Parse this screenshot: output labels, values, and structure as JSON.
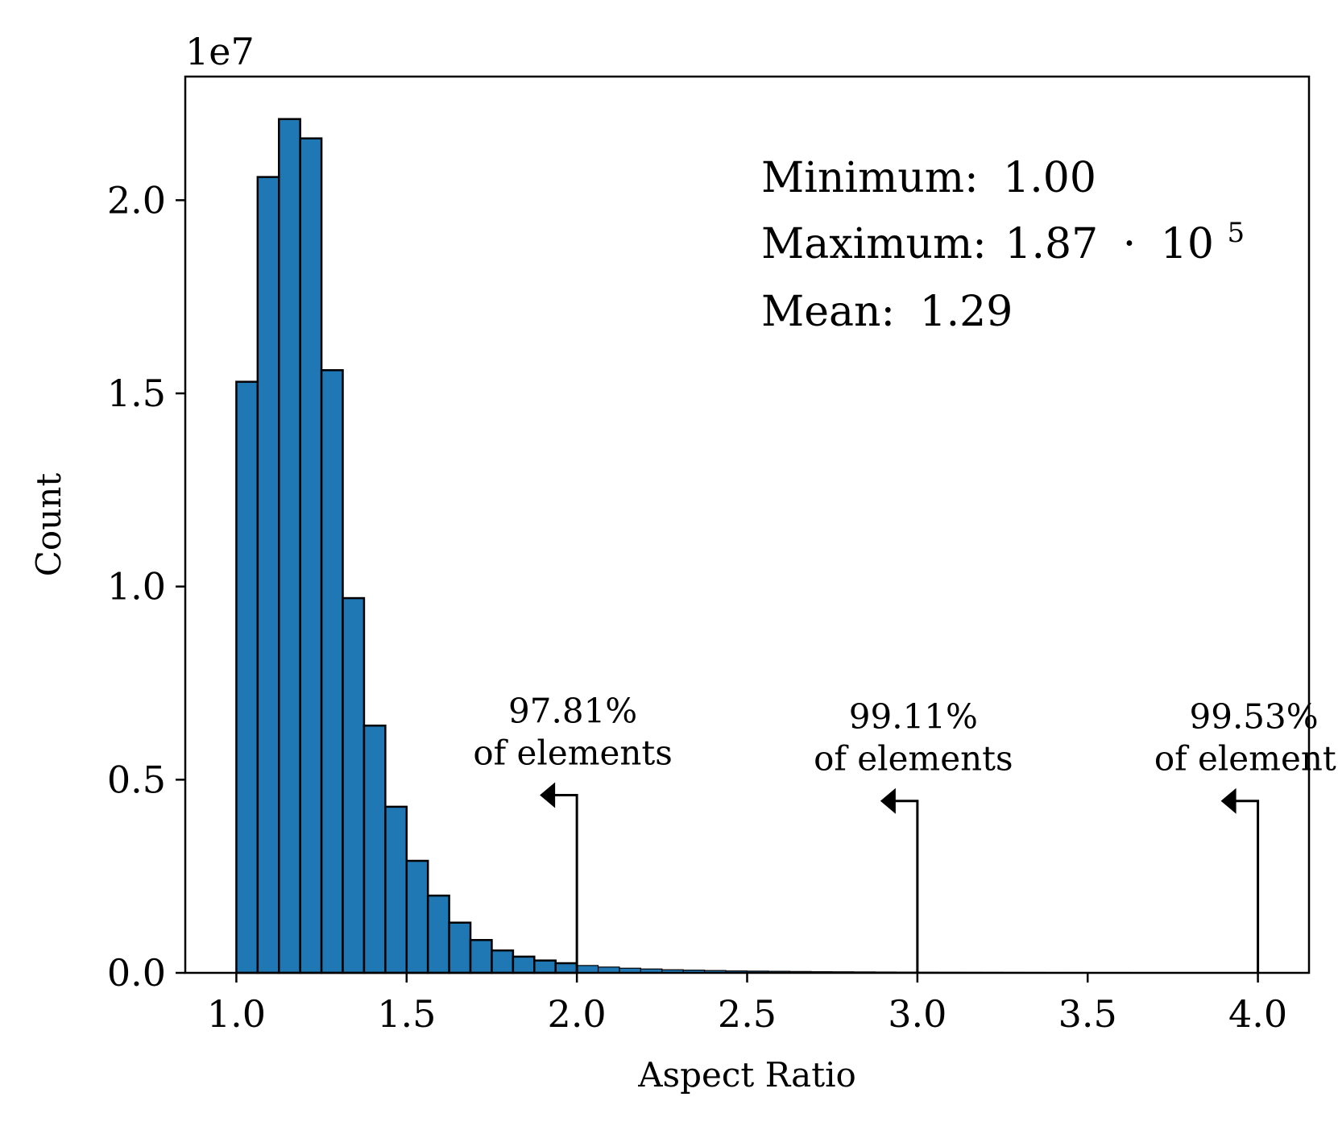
{
  "chart_data": {
    "type": "bar",
    "title": "",
    "xlabel": "Aspect Ratio",
    "ylabel": "Count",
    "y_multiplier_label": "1e7",
    "xlim": [
      0.85,
      4.15
    ],
    "ylim": [
      0,
      2.32
    ],
    "x_ticks": [
      "1.0",
      "1.5",
      "2.0",
      "2.5",
      "3.0",
      "3.5",
      "4.0"
    ],
    "x_tick_values": [
      1.0,
      1.5,
      2.0,
      2.5,
      3.0,
      3.5,
      4.0
    ],
    "y_ticks": [
      "0.0",
      "0.5",
      "1.0",
      "1.5",
      "2.0"
    ],
    "y_tick_values": [
      0.0,
      0.5,
      1.0,
      1.5,
      2.0
    ],
    "bin_start": 1.0,
    "bin_width": 0.0625,
    "values": [
      1.53,
      2.06,
      2.21,
      2.16,
      1.56,
      0.97,
      0.64,
      0.43,
      0.29,
      0.2,
      0.13,
      0.085,
      0.058,
      0.042,
      0.032,
      0.025,
      0.019,
      0.015,
      0.012,
      0.01,
      0.008,
      0.007,
      0.006,
      0.005,
      0.0045,
      0.004,
      0.0035,
      0.003,
      0.0027,
      0.0024,
      0.0021,
      0.0019,
      0.0017,
      0.0015,
      0.0014,
      0.0013,
      0.0012,
      0.0011,
      0.001,
      0.001,
      0.0009,
      0.0009,
      0.0008,
      0.0008,
      0.0007,
      0.0007,
      0.0006,
      0.0006
    ],
    "bar_color": "#1f77b4",
    "edge_color": "#000000",
    "stats": {
      "minimum_label": "Minimum:",
      "minimum_value": "1.00",
      "maximum_label": "Maximum:",
      "maximum_mantissa": "1.87",
      "maximum_dot": "·",
      "maximum_base": "10",
      "maximum_exponent": "5",
      "mean_label": "Mean:",
      "mean_value": "1.29"
    },
    "annotations": [
      {
        "x": 2.0,
        "line_top": 0.46,
        "percent": "97.81%",
        "text": "of elements"
      },
      {
        "x": 3.0,
        "line_top": 0.445,
        "percent": "99.11%",
        "text": "of elements"
      },
      {
        "x": 4.0,
        "line_top": 0.445,
        "percent": "99.53%",
        "text": "of elements"
      }
    ]
  }
}
